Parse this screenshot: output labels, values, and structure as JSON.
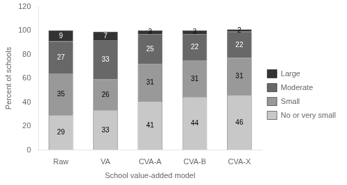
{
  "chart_data": {
    "type": "bar",
    "stacked": true,
    "data_labels": true,
    "categories": [
      "Raw",
      "VA",
      "CVA-A",
      "CVA-B",
      "CVA-X"
    ],
    "series": [
      {
        "name": "No or very small",
        "color": "#c8c8c8",
        "values": [
          29,
          33,
          41,
          44,
          46
        ]
      },
      {
        "name": "Small",
        "color": "#999999",
        "values": [
          35,
          26,
          31,
          31,
          31
        ]
      },
      {
        "name": "Moderate",
        "color": "#686868",
        "values": [
          27,
          33,
          25,
          22,
          22
        ]
      },
      {
        "name": "Large",
        "color": "#333333",
        "values": [
          9,
          7,
          3,
          3,
          2
        ]
      }
    ],
    "xlabel": "School value-added model",
    "ylabel": "Percent of schools",
    "ylim": [
      0,
      120
    ],
    "yticks": [
      0,
      20,
      40,
      60,
      80,
      100,
      120
    ],
    "grid": false,
    "legend": "right"
  }
}
